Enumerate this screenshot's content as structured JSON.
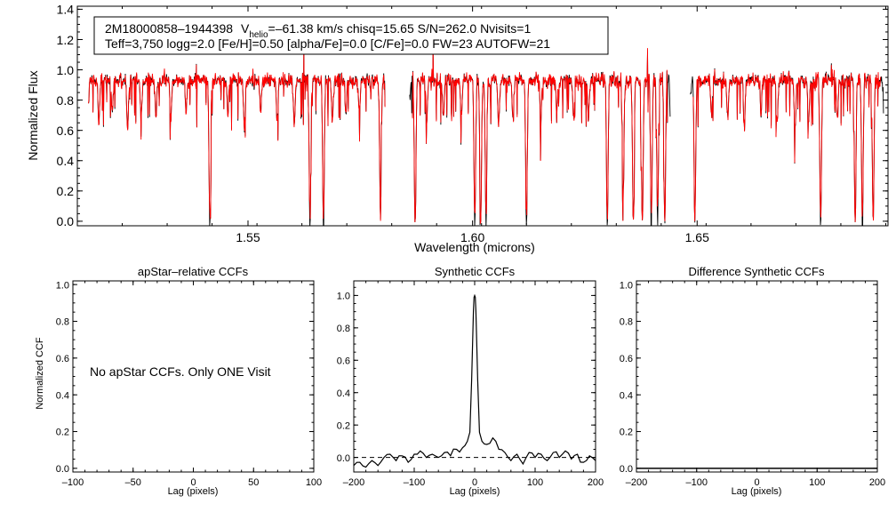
{
  "figure": {
    "title_line1": {
      "object": "2M18000858–1944398",
      "v_prefix": "V",
      "v_subscript": "helio",
      "v_rest": "=–61.38 km/s  chisq=15.65  S/N=262.0  Nvisits=1"
    },
    "title_line2": "Teff=3,750 logg=2.0 [Fe/H]=0.50 [alpha/Fe]=0.0 [C/Fe]=0.0 FW=23 AUTOFW=21",
    "no_ccf_message": "No apStar CCFs.  Only ONE Visit",
    "colors": {
      "observed": "#000000",
      "model": "#ff0000",
      "axes": "#000000",
      "background": "#ffffff"
    }
  },
  "chart_data": [
    {
      "id": "spectrum",
      "type": "line",
      "title": "",
      "xlabel": "Wavelength (microns)",
      "ylabel": "Normalized Flux",
      "xlim": [
        1.512,
        1.6925
      ],
      "ylim": [
        -0.03,
        1.42
      ],
      "xticks": [
        1.55,
        1.6,
        1.65
      ],
      "xtick_labels": [
        "1.55",
        "1.60",
        "1.65"
      ],
      "yticks": [
        0.0,
        0.2,
        0.4,
        0.6,
        0.8,
        1.0,
        1.2,
        1.4
      ],
      "ytick_labels": [
        "0.0",
        "0.2",
        "0.4",
        "0.6",
        "0.8",
        "1.0",
        "1.2",
        "1.4"
      ],
      "segments": [
        [
          1.5145,
          1.5805
        ],
        [
          1.586,
          1.644
        ],
        [
          1.6485,
          1.6915
        ]
      ],
      "continuum": 0.93,
      "noise": 0.045,
      "absorption_lines": [
        {
          "x": 1.5168,
          "depth": 0.28
        },
        {
          "x": 1.5198,
          "depth": 0.22
        },
        {
          "x": 1.5232,
          "depth": 0.3
        },
        {
          "x": 1.5262,
          "depth": 0.22
        },
        {
          "x": 1.5295,
          "depth": 0.25
        },
        {
          "x": 1.5328,
          "depth": 0.26
        },
        {
          "x": 1.5362,
          "depth": 0.2
        },
        {
          "x": 1.5415,
          "depth": 0.95
        },
        {
          "x": 1.5455,
          "depth": 0.24
        },
        {
          "x": 1.5492,
          "depth": 0.3
        },
        {
          "x": 1.5528,
          "depth": 0.22
        },
        {
          "x": 1.5565,
          "depth": 0.26
        },
        {
          "x": 1.5603,
          "depth": 0.3
        },
        {
          "x": 1.5638,
          "depth": 0.95
        },
        {
          "x": 1.5668,
          "depth": 0.95
        },
        {
          "x": 1.5688,
          "depth": 0.26
        },
        {
          "x": 1.5718,
          "depth": 0.22
        },
        {
          "x": 1.5748,
          "depth": 0.24
        },
        {
          "x": 1.5795,
          "depth": 0.95
        },
        {
          "x": 1.5872,
          "depth": 0.95
        },
        {
          "x": 1.5898,
          "depth": 0.28
        },
        {
          "x": 1.5935,
          "depth": 0.26
        },
        {
          "x": 1.5975,
          "depth": 0.22
        },
        {
          "x": 1.6005,
          "depth": 0.95
        },
        {
          "x": 1.6018,
          "depth": 0.95
        },
        {
          "x": 1.603,
          "depth": 0.95
        },
        {
          "x": 1.6058,
          "depth": 0.3
        },
        {
          "x": 1.609,
          "depth": 0.24
        },
        {
          "x": 1.612,
          "depth": 0.95
        },
        {
          "x": 1.6152,
          "depth": 0.26
        },
        {
          "x": 1.6188,
          "depth": 0.2
        },
        {
          "x": 1.6225,
          "depth": 0.24
        },
        {
          "x": 1.6258,
          "depth": 0.26
        },
        {
          "x": 1.63,
          "depth": 0.95
        },
        {
          "x": 1.6335,
          "depth": 0.95
        },
        {
          "x": 1.6358,
          "depth": 0.95
        },
        {
          "x": 1.6378,
          "depth": 0.95
        },
        {
          "x": 1.6398,
          "depth": 0.95
        },
        {
          "x": 1.6412,
          "depth": 0.95
        },
        {
          "x": 1.6428,
          "depth": 0.95
        },
        {
          "x": 1.6495,
          "depth": 0.95
        },
        {
          "x": 1.6532,
          "depth": 0.26
        },
        {
          "x": 1.6568,
          "depth": 0.24
        },
        {
          "x": 1.6605,
          "depth": 0.3
        },
        {
          "x": 1.6642,
          "depth": 0.22
        },
        {
          "x": 1.6678,
          "depth": 0.28
        },
        {
          "x": 1.6718,
          "depth": 0.34
        },
        {
          "x": 1.6748,
          "depth": 0.3
        },
        {
          "x": 1.6775,
          "depth": 0.95
        },
        {
          "x": 1.6812,
          "depth": 0.26
        },
        {
          "x": 1.6852,
          "depth": 0.95
        },
        {
          "x": 1.6868,
          "depth": 0.95
        },
        {
          "x": 1.6892,
          "depth": 0.95
        }
      ],
      "series": [
        {
          "name": "observed spectrum",
          "color": "#000000"
        },
        {
          "name": "synthetic model",
          "color": "#ff0000"
        }
      ]
    },
    {
      "id": "apstar_ccf",
      "type": "line",
      "title": "apStar–relative CCFs",
      "xlabel": "Lag (pixels)",
      "ylabel": "Normalized CCF",
      "xlim": [
        -100,
        100
      ],
      "ylim": [
        -0.02,
        1.02
      ],
      "xticks": [
        -100,
        -50,
        0,
        50,
        100
      ],
      "xtick_labels": [
        "–100",
        "–50",
        "0",
        "50",
        "100"
      ],
      "yticks": [
        0.0,
        0.2,
        0.4,
        0.6,
        0.8,
        1.0
      ],
      "ytick_labels": [
        "0.0",
        "0.2",
        "0.4",
        "0.6",
        "0.8",
        "1.0"
      ],
      "series": []
    },
    {
      "id": "synthetic_ccf",
      "type": "line",
      "title": "Synthetic CCFs",
      "xlabel": "Lag (pixels)",
      "ylabel": "",
      "xlim": [
        -200,
        200
      ],
      "ylim": [
        -0.09,
        1.09
      ],
      "xticks": [
        -200,
        -100,
        0,
        100,
        200
      ],
      "xtick_labels": [
        "–200",
        "–100",
        "0",
        "100",
        "200"
      ],
      "yticks": [
        0.0,
        0.2,
        0.4,
        0.6,
        0.8,
        1.0
      ],
      "ytick_labels": [
        "0.0",
        "0.2",
        "0.4",
        "0.6",
        "0.8",
        "1.0"
      ],
      "peak": {
        "lag": 0,
        "value": 1.0,
        "width": 4
      },
      "baseline": 0.0,
      "noise_points": [
        {
          "lag": -200,
          "v": -0.05
        },
        {
          "lag": -190,
          "v": -0.03
        },
        {
          "lag": -180,
          "v": -0.06
        },
        {
          "lag": -170,
          "v": -0.02
        },
        {
          "lag": -160,
          "v": -0.05
        },
        {
          "lag": -150,
          "v": 0.0
        },
        {
          "lag": -140,
          "v": 0.02
        },
        {
          "lag": -130,
          "v": -0.02
        },
        {
          "lag": -120,
          "v": 0.01
        },
        {
          "lag": -110,
          "v": -0.03
        },
        {
          "lag": -100,
          "v": 0.02
        },
        {
          "lag": -90,
          "v": 0.04
        },
        {
          "lag": -80,
          "v": 0.0
        },
        {
          "lag": -70,
          "v": 0.02
        },
        {
          "lag": -60,
          "v": 0.0
        },
        {
          "lag": -50,
          "v": 0.03
        },
        {
          "lag": -40,
          "v": 0.01
        },
        {
          "lag": -30,
          "v": 0.05
        },
        {
          "lag": -20,
          "v": 0.06
        },
        {
          "lag": -12,
          "v": 0.1
        },
        {
          "lag": 12,
          "v": 0.1
        },
        {
          "lag": 20,
          "v": 0.08
        },
        {
          "lag": 30,
          "v": 0.12
        },
        {
          "lag": 40,
          "v": 0.05
        },
        {
          "lag": 50,
          "v": 0.03
        },
        {
          "lag": 60,
          "v": -0.02
        },
        {
          "lag": 70,
          "v": 0.02
        },
        {
          "lag": 80,
          "v": -0.04
        },
        {
          "lag": 90,
          "v": 0.03
        },
        {
          "lag": 100,
          "v": 0.0
        },
        {
          "lag": 110,
          "v": 0.02
        },
        {
          "lag": 120,
          "v": -0.02
        },
        {
          "lag": 130,
          "v": 0.03
        },
        {
          "lag": 140,
          "v": 0.0
        },
        {
          "lag": 150,
          "v": 0.04
        },
        {
          "lag": 160,
          "v": -0.01
        },
        {
          "lag": 170,
          "v": 0.02
        },
        {
          "lag": 180,
          "v": -0.03
        },
        {
          "lag": 190,
          "v": 0.01
        },
        {
          "lag": 200,
          "v": -0.02
        }
      ],
      "series": [
        {
          "name": "synthetic CCF",
          "color": "#000000"
        },
        {
          "name": "zero line",
          "style": "dashed"
        }
      ]
    },
    {
      "id": "difference_ccf",
      "type": "line",
      "title": "Difference Synthetic CCFs",
      "xlabel": "Lag (pixels)",
      "ylabel": "",
      "xlim": [
        -200,
        200
      ],
      "ylim": [
        -0.02,
        1.02
      ],
      "xticks": [
        -200,
        -100,
        0,
        100,
        200
      ],
      "xtick_labels": [
        "–200",
        "–100",
        "0",
        "100",
        "200"
      ],
      "yticks": [
        0.0,
        0.2,
        0.4,
        0.6,
        0.8,
        1.0
      ],
      "ytick_labels": [
        "0.0",
        "0.2",
        "0.4",
        "0.6",
        "0.8",
        "1.0"
      ],
      "series": [
        {
          "name": "difference CCF",
          "values": "flat at 0.0"
        }
      ]
    }
  ]
}
